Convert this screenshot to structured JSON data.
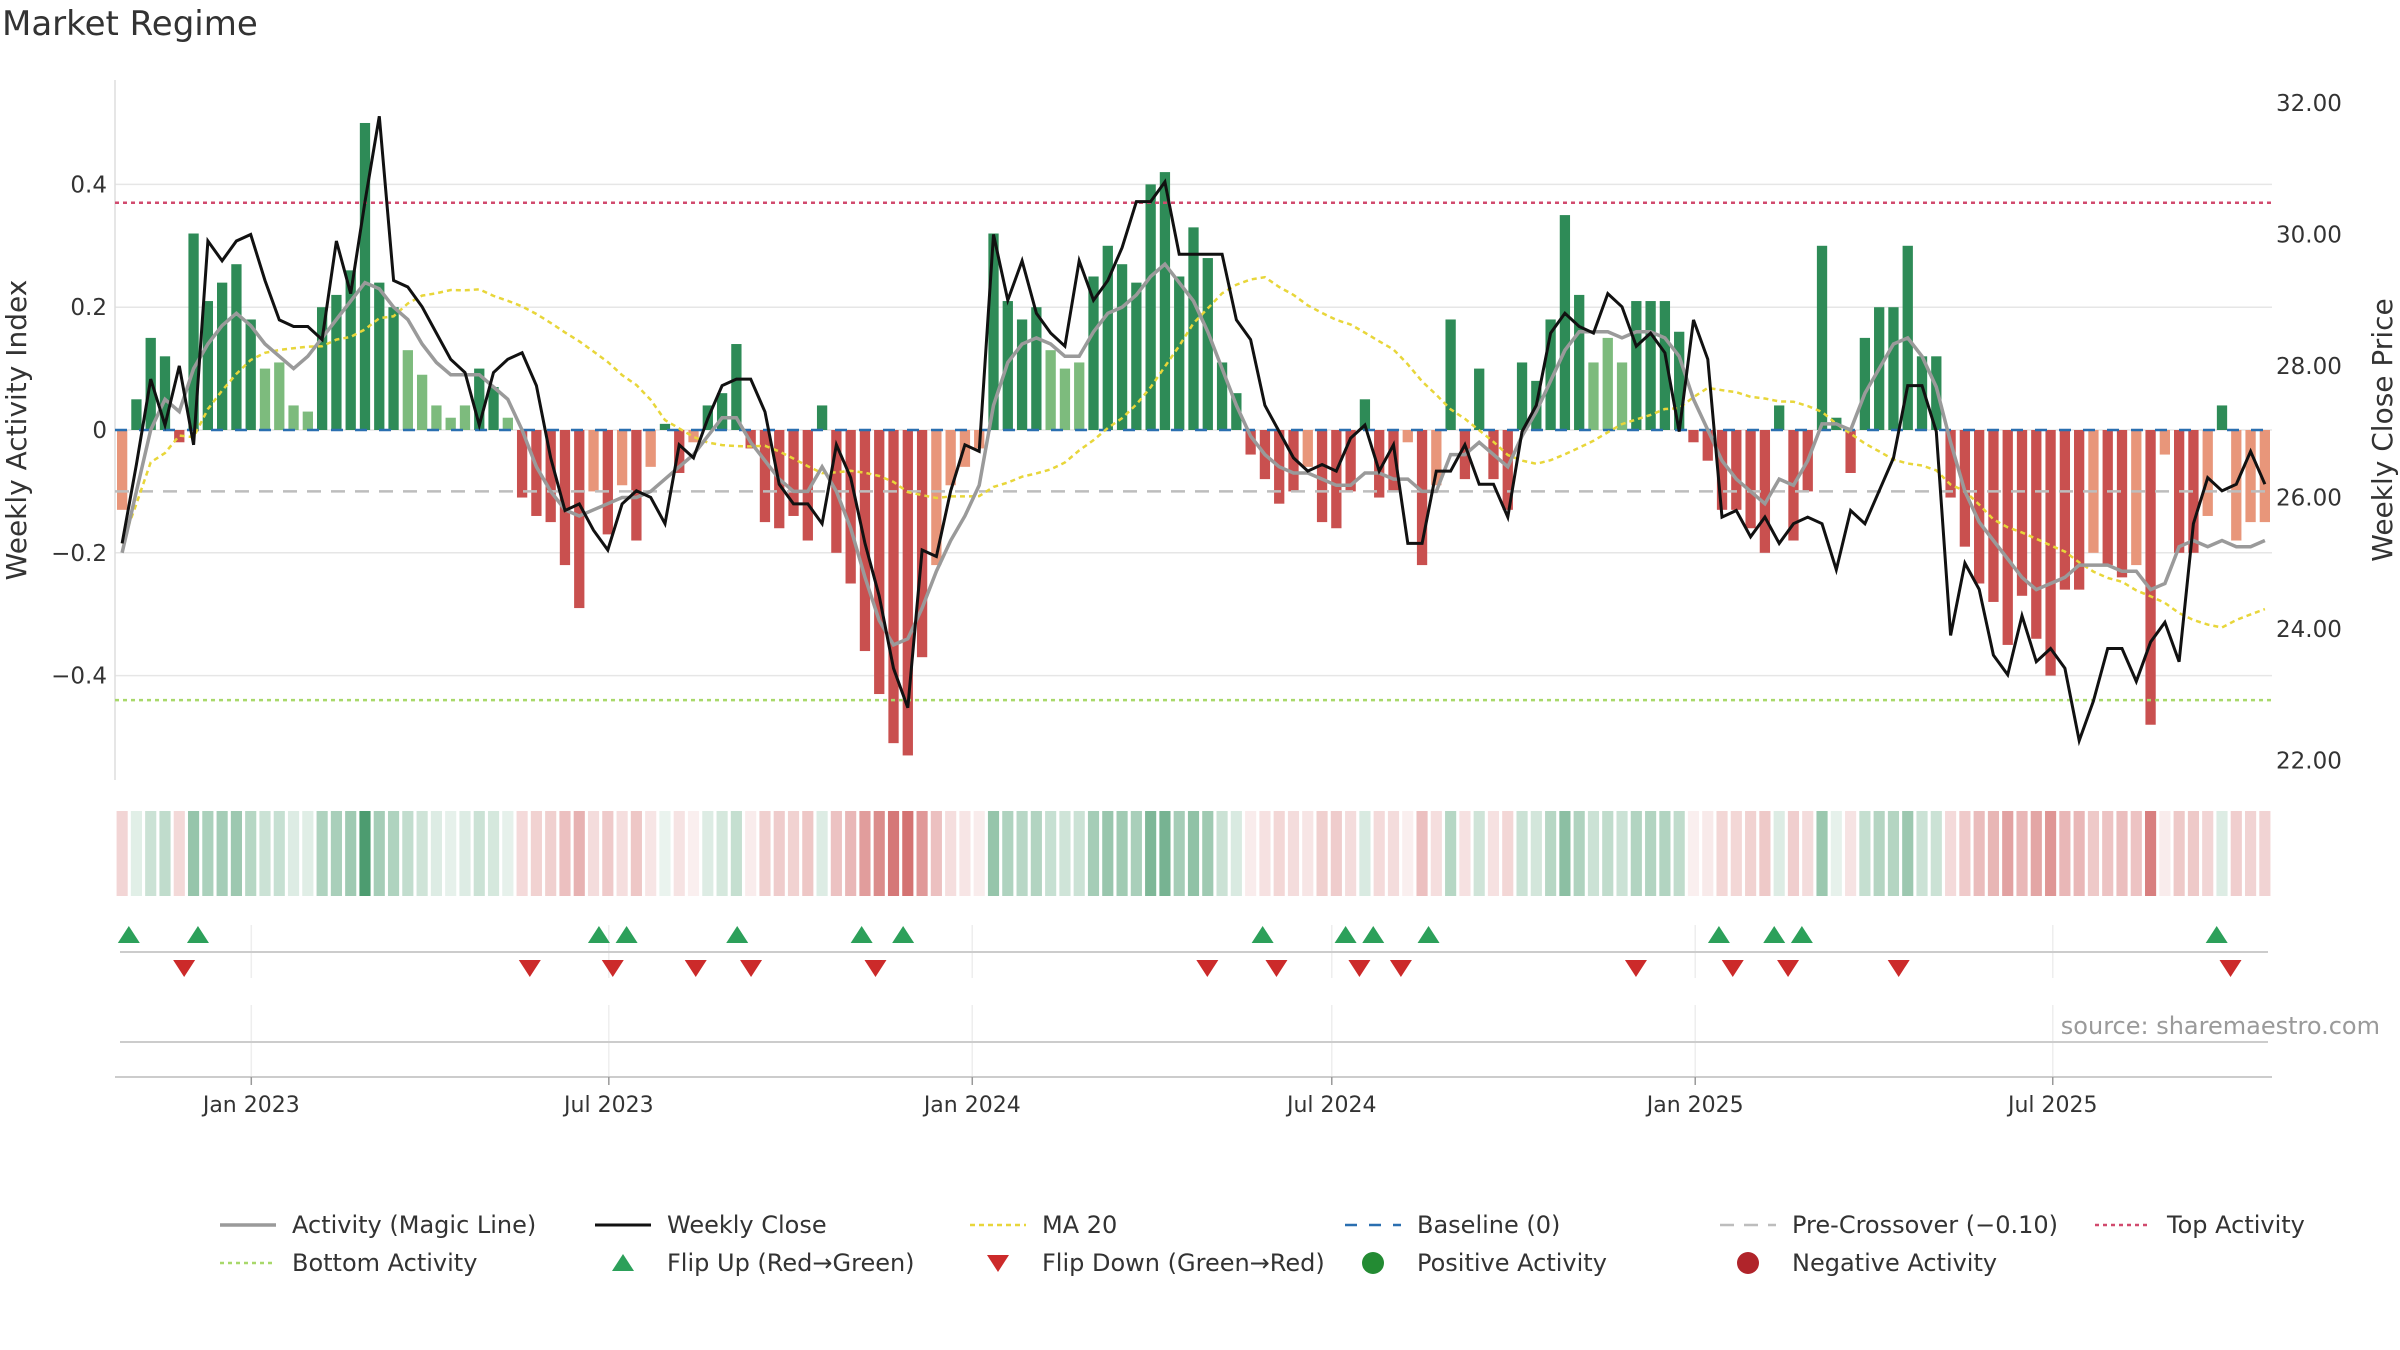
{
  "page": {
    "title": "Market Regime",
    "source": "source: sharemaestro.com"
  },
  "colors": {
    "dark_green": "#2e8b57",
    "light_green": "#7dbb7d",
    "dark_red": "#c9504f",
    "light_red": "#e8967a",
    "magic_line": "#9a9a9a",
    "close": "#111111",
    "ma20": "#e8d63a",
    "baseline": "#2a6fb0",
    "pre_crossover": "#bdbdbd",
    "top_activity": "#d14a6e",
    "bottom_activity": "#a8d86a",
    "flip_up": "#2ca05a",
    "flip_down": "#cc2a2a"
  },
  "chart_data": {
    "type": "bar",
    "title": "Market Regime",
    "x_start": "2022-10-24",
    "x_end": "2025-10-20",
    "x_ticks": [
      {
        "date": "2023-01-01",
        "label": "Jan 2023"
      },
      {
        "date": "2023-07-01",
        "label": "Jul 2023"
      },
      {
        "date": "2024-01-01",
        "label": "Jan 2024"
      },
      {
        "date": "2024-07-01",
        "label": "Jul 2024"
      },
      {
        "date": "2025-01-01",
        "label": "Jan 2025"
      },
      {
        "date": "2025-07-01",
        "label": "Jul 2025"
      }
    ],
    "left_axis": {
      "label": "Weekly Activity Index",
      "ylim": [
        -0.57,
        0.57
      ],
      "ticks": [
        {
          "v": 0.4,
          "label": "0.4"
        },
        {
          "v": 0.2,
          "label": "0.2"
        },
        {
          "v": 0,
          "label": "0"
        },
        {
          "v": -0.2,
          "label": "−0.2"
        },
        {
          "v": -0.4,
          "label": "−0.4"
        }
      ]
    },
    "right_axis": {
      "label": "Weekly Close Price",
      "ylim": [
        21.7,
        32.35
      ],
      "ticks": [
        {
          "v": 32,
          "label": "32.00"
        },
        {
          "v": 30,
          "label": "30.00"
        },
        {
          "v": 28,
          "label": "28.00"
        },
        {
          "v": 26,
          "label": "26.00"
        },
        {
          "v": 24,
          "label": "24.00"
        },
        {
          "v": 22,
          "label": "22.00"
        }
      ]
    },
    "reference_lines": {
      "top_activity": 0.37,
      "bottom_activity": -0.44,
      "pre_crossover": -0.1,
      "baseline": 0
    },
    "activity": [
      -0.13,
      0.05,
      0.15,
      0.12,
      -0.02,
      0.32,
      0.21,
      0.24,
      0.27,
      0.18,
      0.1,
      0.11,
      0.04,
      0.03,
      0.2,
      0.22,
      0.26,
      0.5,
      0.24,
      0.2,
      0.13,
      0.09,
      0.04,
      0.02,
      0.04,
      0.1,
      0.07,
      0.02,
      -0.11,
      -0.14,
      -0.15,
      -0.22,
      -0.29,
      -0.1,
      -0.17,
      -0.09,
      -0.18,
      -0.06,
      0.01,
      -0.07,
      -0.02,
      0.04,
      0.06,
      0.14,
      -0.03,
      -0.15,
      -0.16,
      -0.14,
      -0.18,
      0.04,
      -0.2,
      -0.25,
      -0.36,
      -0.43,
      -0.51,
      -0.53,
      -0.37,
      -0.22,
      -0.09,
      -0.06,
      -0.03,
      0.32,
      0.21,
      0.18,
      0.2,
      0.13,
      0.1,
      0.11,
      0.25,
      0.3,
      0.27,
      0.24,
      0.4,
      0.42,
      0.25,
      0.33,
      0.28,
      0.11,
      0.06,
      -0.04,
      -0.08,
      -0.12,
      -0.1,
      -0.06,
      -0.15,
      -0.16,
      -0.1,
      0.05,
      -0.11,
      -0.1,
      -0.02,
      -0.22,
      -0.09,
      0.18,
      -0.08,
      0.1,
      -0.08,
      -0.13,
      0.11,
      0.08,
      0.18,
      0.35,
      0.22,
      0.11,
      0.15,
      0.11,
      0.21,
      0.21,
      0.21,
      0.16,
      -0.02,
      -0.05,
      -0.13,
      -0.13,
      -0.16,
      -0.2,
      0.04,
      -0.18,
      -0.1,
      0.3,
      0.02,
      -0.07,
      0.15,
      0.2,
      0.2,
      0.3,
      0.12,
      0.12,
      -0.11,
      -0.19,
      -0.25,
      -0.28,
      -0.35,
      -0.27,
      -0.34,
      -0.4,
      -0.26,
      -0.26,
      -0.2,
      -0.22,
      -0.24,
      -0.22,
      -0.48,
      -0.04,
      -0.2,
      -0.2,
      -0.14,
      0.04,
      -0.18,
      -0.15,
      -0.15
    ],
    "magic_line": [
      -0.2,
      -0.1,
      0.0,
      0.05,
      0.03,
      0.1,
      0.14,
      0.17,
      0.19,
      0.17,
      0.14,
      0.12,
      0.1,
      0.12,
      0.15,
      0.18,
      0.21,
      0.24,
      0.23,
      0.2,
      0.18,
      0.14,
      0.11,
      0.09,
      0.09,
      0.09,
      0.07,
      0.05,
      0.0,
      -0.06,
      -0.1,
      -0.13,
      -0.14,
      -0.13,
      -0.12,
      -0.11,
      -0.11,
      -0.1,
      -0.08,
      -0.06,
      -0.04,
      -0.01,
      0.02,
      0.02,
      -0.02,
      -0.05,
      -0.08,
      -0.1,
      -0.1,
      -0.06,
      -0.1,
      -0.16,
      -0.24,
      -0.31,
      -0.35,
      -0.34,
      -0.29,
      -0.23,
      -0.18,
      -0.14,
      -0.09,
      0.04,
      0.11,
      0.14,
      0.15,
      0.14,
      0.12,
      0.12,
      0.16,
      0.19,
      0.2,
      0.22,
      0.25,
      0.27,
      0.24,
      0.21,
      0.16,
      0.1,
      0.04,
      -0.01,
      -0.04,
      -0.06,
      -0.07,
      -0.07,
      -0.08,
      -0.09,
      -0.09,
      -0.07,
      -0.07,
      -0.08,
      -0.08,
      -0.1,
      -0.1,
      -0.04,
      -0.04,
      -0.02,
      -0.04,
      -0.06,
      -0.01,
      0.03,
      0.08,
      0.13,
      0.16,
      0.16,
      0.16,
      0.15,
      0.16,
      0.16,
      0.15,
      0.12,
      0.05,
      0.0,
      -0.05,
      -0.08,
      -0.1,
      -0.12,
      -0.08,
      -0.09,
      -0.05,
      0.01,
      0.01,
      0.0,
      0.06,
      0.1,
      0.14,
      0.15,
      0.12,
      0.07,
      -0.02,
      -0.1,
      -0.15,
      -0.18,
      -0.21,
      -0.24,
      -0.26,
      -0.25,
      -0.24,
      -0.22,
      -0.22,
      -0.22,
      -0.23,
      -0.23,
      -0.26,
      -0.25,
      -0.19,
      -0.18,
      -0.19,
      -0.18,
      -0.19,
      -0.19,
      -0.18
    ],
    "close": [
      25.3,
      26.5,
      27.8,
      27.1,
      28.0,
      26.8,
      29.9,
      29.6,
      29.9,
      30.0,
      29.3,
      28.7,
      28.6,
      28.6,
      28.4,
      29.9,
      29.1,
      30.5,
      31.8,
      29.3,
      29.2,
      28.9,
      28.5,
      28.1,
      27.9,
      27.1,
      27.9,
      28.1,
      28.2,
      27.7,
      26.6,
      25.8,
      25.9,
      25.5,
      25.2,
      25.9,
      26.1,
      26.0,
      25.6,
      26.8,
      26.6,
      27.2,
      27.7,
      27.8,
      27.8,
      27.3,
      26.2,
      25.9,
      25.9,
      25.6,
      26.8,
      26.3,
      25.3,
      24.5,
      23.4,
      22.8,
      25.2,
      25.1,
      26.1,
      26.8,
      26.7,
      30.0,
      29.0,
      29.6,
      28.8,
      28.5,
      28.3,
      29.6,
      29.0,
      29.3,
      29.8,
      30.5,
      30.5,
      30.8,
      29.7,
      29.7,
      29.7,
      29.7,
      28.7,
      28.4,
      27.4,
      27.0,
      26.6,
      26.4,
      26.5,
      26.4,
      26.9,
      27.1,
      26.4,
      26.8,
      25.3,
      25.3,
      26.4,
      26.4,
      26.8,
      26.2,
      26.2,
      25.7,
      27.0,
      27.4,
      28.5,
      28.8,
      28.6,
      28.5,
      29.1,
      28.9,
      28.3,
      28.5,
      28.2,
      27.0,
      28.7,
      28.1,
      25.7,
      25.8,
      25.4,
      25.7,
      25.3,
      25.6,
      25.7,
      25.6,
      24.9,
      25.8,
      25.6,
      26.1,
      26.6,
      27.7,
      27.7,
      27.0,
      23.9,
      25.0,
      24.6,
      23.6,
      23.3,
      24.2,
      23.5,
      23.7,
      23.4,
      22.3,
      22.9,
      23.7,
      23.7,
      23.2,
      23.8,
      24.1,
      23.5,
      25.6,
      26.3,
      26.1,
      26.2,
      26.7,
      26.2
    ]
  },
  "strip": {
    "intensity": [
      0.24,
      0.14,
      0.25,
      0.3,
      0.22,
      0.5,
      0.4,
      0.43,
      0.47,
      0.35,
      0.25,
      0.27,
      0.16,
      0.15,
      0.38,
      0.41,
      0.46,
      0.85,
      0.43,
      0.38,
      0.29,
      0.23,
      0.16,
      0.12,
      0.16,
      0.25,
      0.2,
      0.12,
      0.21,
      0.26,
      0.27,
      0.36,
      0.44,
      0.2,
      0.3,
      0.19,
      0.32,
      0.15,
      0.1,
      0.16,
      0.09,
      0.16,
      0.2,
      0.28,
      0.11,
      0.27,
      0.29,
      0.26,
      0.32,
      0.16,
      0.35,
      0.41,
      0.56,
      0.66,
      0.77,
      0.8,
      0.58,
      0.36,
      0.19,
      0.15,
      0.11,
      0.5,
      0.38,
      0.34,
      0.37,
      0.27,
      0.23,
      0.25,
      0.43,
      0.49,
      0.45,
      0.41,
      0.62,
      0.65,
      0.43,
      0.53,
      0.46,
      0.25,
      0.18,
      0.11,
      0.17,
      0.23,
      0.2,
      0.15,
      0.27,
      0.29,
      0.2,
      0.18,
      0.21,
      0.2,
      0.09,
      0.36,
      0.19,
      0.35,
      0.17,
      0.23,
      0.17,
      0.23,
      0.25,
      0.21,
      0.35,
      0.55,
      0.38,
      0.25,
      0.3,
      0.25,
      0.37,
      0.37,
      0.37,
      0.3,
      0.09,
      0.12,
      0.23,
      0.23,
      0.26,
      0.31,
      0.16,
      0.28,
      0.2,
      0.48,
      0.12,
      0.16,
      0.28,
      0.36,
      0.36,
      0.47,
      0.25,
      0.25,
      0.21,
      0.3,
      0.38,
      0.42,
      0.53,
      0.41,
      0.51,
      0.6,
      0.41,
      0.41,
      0.31,
      0.34,
      0.37,
      0.34,
      0.73,
      0.11,
      0.31,
      0.31,
      0.24,
      0.16,
      0.28,
      0.25,
      0.25
    ]
  },
  "markers": {
    "flip_up": [
      "2022-10-31",
      "2022-12-05",
      "2023-06-26",
      "2023-07-10",
      "2023-09-04",
      "2023-11-06",
      "2023-11-27",
      "2024-05-27",
      "2024-07-08",
      "2024-07-22",
      "2024-08-19",
      "2025-01-13",
      "2025-02-10",
      "2025-02-24",
      "2025-09-22"
    ],
    "flip_down": [
      "2022-11-28",
      "2023-05-22",
      "2023-07-03",
      "2023-08-14",
      "2023-09-11",
      "2023-11-13",
      "2024-04-29",
      "2024-06-03",
      "2024-07-15",
      "2024-08-05",
      "2024-12-02",
      "2025-01-20",
      "2025-02-17",
      "2025-04-14",
      "2025-09-29"
    ]
  },
  "legend": [
    {
      "key": "magic",
      "label": "Activity (Magic Line)"
    },
    {
      "key": "close",
      "label": "Weekly Close"
    },
    {
      "key": "ma20",
      "label": "MA 20"
    },
    {
      "key": "baseline",
      "label": "Baseline (0)"
    },
    {
      "key": "precross",
      "label": "Pre-Crossover (−0.10)"
    },
    {
      "key": "top",
      "label": "Top Activity"
    },
    {
      "key": "bottom",
      "label": "Bottom Activity"
    },
    {
      "key": "flipup",
      "label": "Flip Up (Red→Green)"
    },
    {
      "key": "flipdown",
      "label": "Flip Down (Green→Red)"
    },
    {
      "key": "pos",
      "label": "Positive Activity"
    },
    {
      "key": "neg",
      "label": "Negative Activity"
    }
  ]
}
